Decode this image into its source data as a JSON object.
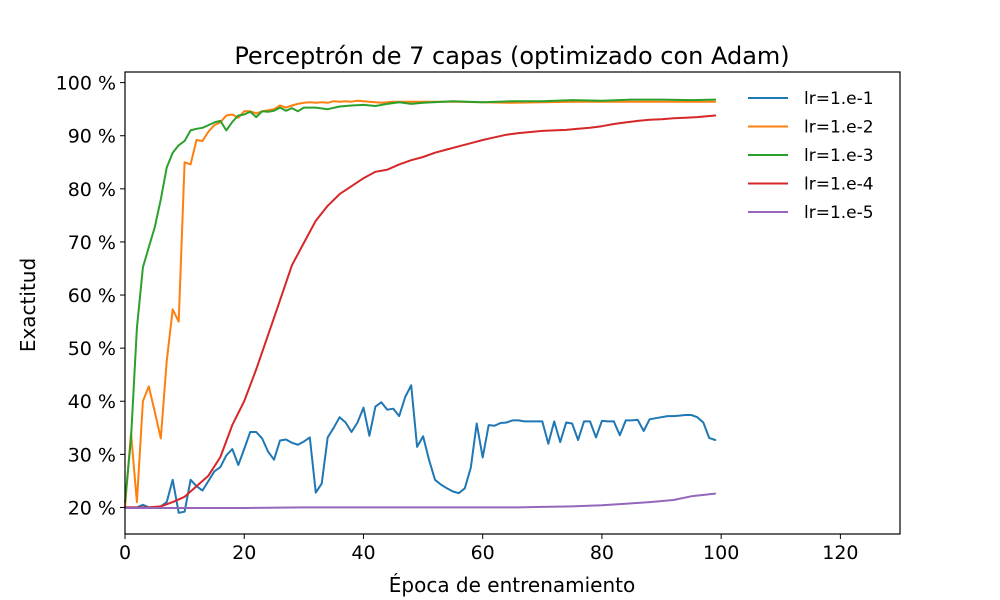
{
  "chart_data": {
    "type": "line",
    "title": "Perceptrón de 7 capas (optimizado con Adam)",
    "xlabel": "Época de entrenamiento",
    "ylabel": "Exactitud",
    "xlim": [
      0,
      130
    ],
    "ylim": [
      15,
      102
    ],
    "x_ticks": [
      0,
      20,
      40,
      60,
      80,
      100,
      120
    ],
    "y_ticks": [
      20,
      30,
      40,
      50,
      60,
      70,
      80,
      90,
      100
    ],
    "y_tick_suffix": " %",
    "grid": false,
    "legend_position": "top-right",
    "series": [
      {
        "name": "lr=1.e-1",
        "color": "#1f77b4",
        "x": [
          0,
          1,
          2,
          3,
          4,
          5,
          6,
          7,
          8,
          9,
          10,
          11,
          12,
          13,
          14,
          15,
          16,
          17,
          18,
          19,
          20,
          21,
          22,
          23,
          24,
          25,
          26,
          27,
          28,
          29,
          30,
          31,
          32,
          33,
          34,
          35,
          36,
          37,
          38,
          39,
          40,
          41,
          42,
          43,
          44,
          45,
          46,
          47,
          48,
          49,
          50,
          51,
          52,
          53,
          54,
          55,
          56,
          57,
          58,
          59,
          60,
          61,
          62,
          63,
          64,
          65,
          66,
          67,
          68,
          69,
          70,
          71,
          72,
          73,
          74,
          75,
          76,
          77,
          78,
          79,
          80,
          81,
          82,
          83,
          84,
          85,
          86,
          87,
          88,
          89,
          90,
          91,
          92,
          93,
          94,
          95,
          96,
          97,
          98,
          99
        ],
        "y": [
          20,
          20,
          20,
          20.5,
          20,
          20,
          20.2,
          21,
          25.2,
          19,
          19.2,
          25.2,
          24,
          23.2,
          25,
          26.8,
          27.6,
          29.8,
          31,
          28,
          31,
          34.2,
          34.2,
          33,
          30.5,
          29,
          32.6,
          32.8,
          32.2,
          31.8,
          32.4,
          33.2,
          22.8,
          24.5,
          33.2,
          35,
          37,
          36,
          34.2,
          36,
          38.8,
          33.5,
          39,
          39.8,
          38.4,
          38.6,
          37.2,
          40.8,
          43,
          31.4,
          33.4,
          29,
          25.2,
          24.3,
          23.6,
          23,
          22.7,
          23.6,
          27.5,
          35.8,
          29.4,
          35.5,
          35.4,
          35.9,
          36,
          36.4,
          36.4,
          36.2,
          36.2,
          36.2,
          36.2,
          32,
          36.2,
          32.3,
          36,
          35.8,
          32.7,
          36.2,
          36.2,
          33.2,
          36.3,
          36.2,
          36.2,
          33.6,
          36.4,
          36.4,
          36.5,
          34.4,
          36.6,
          36.8,
          37,
          37.2,
          37.2,
          37.3,
          37.4,
          37.4,
          37,
          36,
          33.1,
          32.7
        ]
      },
      {
        "name": "lr=1.e-2",
        "color": "#ff7f0e",
        "x": [
          0,
          1,
          2,
          3,
          4,
          5,
          6,
          7,
          8,
          9,
          10,
          11,
          12,
          13,
          14,
          15,
          16,
          17,
          18,
          19,
          20,
          21,
          22,
          23,
          24,
          25,
          26,
          27,
          28,
          29,
          30,
          31,
          32,
          33,
          34,
          35,
          36,
          37,
          38,
          39,
          40,
          41,
          42,
          43,
          44,
          45,
          46,
          47,
          48,
          49,
          50,
          55,
          60,
          65,
          70,
          75,
          80,
          85,
          90,
          95,
          99
        ],
        "y": [
          20,
          34,
          21,
          40,
          42.8,
          38,
          33,
          47.5,
          57.3,
          55,
          85,
          84.6,
          89.2,
          89,
          90.8,
          92,
          92.5,
          93.8,
          94,
          93.4,
          94.6,
          94.6,
          94.2,
          94.6,
          94.8,
          95,
          95.7,
          95.3,
          95.7,
          96,
          96.2,
          96.3,
          96.2,
          96.3,
          96.2,
          96.5,
          96.4,
          96.5,
          96.4,
          96.6,
          96.5,
          96.4,
          96.3,
          96.2,
          96.3,
          96.4,
          96.4,
          96.4,
          96.4,
          96.4,
          96.4,
          96.4,
          96.3,
          96.2,
          96.3,
          96.4,
          96.4,
          96.4,
          96.4,
          96.4,
          96.4
        ]
      },
      {
        "name": "lr=1.e-3",
        "color": "#2ca02c",
        "x": [
          0,
          1,
          2,
          3,
          4,
          5,
          6,
          7,
          8,
          9,
          10,
          11,
          12,
          13,
          14,
          15,
          16,
          17,
          18,
          19,
          20,
          21,
          22,
          23,
          24,
          25,
          26,
          27,
          28,
          29,
          30,
          32,
          34,
          36,
          38,
          40,
          42,
          44,
          46,
          48,
          50,
          55,
          60,
          65,
          70,
          75,
          80,
          85,
          90,
          95,
          99
        ],
        "y": [
          21,
          33,
          53.8,
          65.2,
          69,
          72.8,
          78,
          84,
          86.8,
          88.2,
          89,
          91,
          91.3,
          91.5,
          92,
          92.5,
          92.8,
          91,
          92.6,
          93.8,
          94,
          94.5,
          93.5,
          94.6,
          94.5,
          94.7,
          95.3,
          94.7,
          95.2,
          94.6,
          95.3,
          95.3,
          95,
          95.5,
          95.7,
          95.8,
          95.6,
          96,
          96.3,
          96,
          96.2,
          96.5,
          96.3,
          96.5,
          96.5,
          96.7,
          96.6,
          96.8,
          96.8,
          96.7,
          96.8
        ]
      },
      {
        "name": "lr=1.e-4",
        "color": "#d62728",
        "x": [
          0,
          2,
          4,
          6,
          8,
          10,
          12,
          14,
          16,
          18,
          20,
          22,
          24,
          26,
          28,
          30,
          32,
          34,
          36,
          38,
          40,
          42,
          44,
          46,
          48,
          50,
          52,
          54,
          56,
          58,
          60,
          62,
          64,
          66,
          68,
          70,
          72,
          74,
          76,
          78,
          80,
          82,
          84,
          86,
          88,
          90,
          92,
          94,
          96,
          99
        ],
        "y": [
          20,
          20,
          20,
          20.2,
          21,
          22,
          24,
          26,
          29.5,
          35.5,
          40,
          46,
          52.5,
          59,
          65.6,
          69.8,
          74,
          76.8,
          79,
          80.5,
          82,
          83.2,
          83.6,
          84.6,
          85.4,
          86,
          86.8,
          87.4,
          88,
          88.6,
          89.2,
          89.7,
          90.2,
          90.5,
          90.7,
          90.9,
          91,
          91.1,
          91.3,
          91.5,
          91.8,
          92.2,
          92.5,
          92.8,
          93,
          93.1,
          93.3,
          93.4,
          93.5,
          93.8
        ]
      },
      {
        "name": "lr=1.e-5",
        "color": "#9467bd",
        "x": [
          0,
          10,
          20,
          30,
          40,
          50,
          60,
          66,
          70,
          75,
          80,
          84,
          88,
          92,
          95,
          99
        ],
        "y": [
          19.9,
          19.9,
          19.9,
          20,
          20,
          20,
          20,
          20,
          20.1,
          20.2,
          20.4,
          20.7,
          21,
          21.4,
          22.1,
          22.6
        ]
      }
    ]
  }
}
